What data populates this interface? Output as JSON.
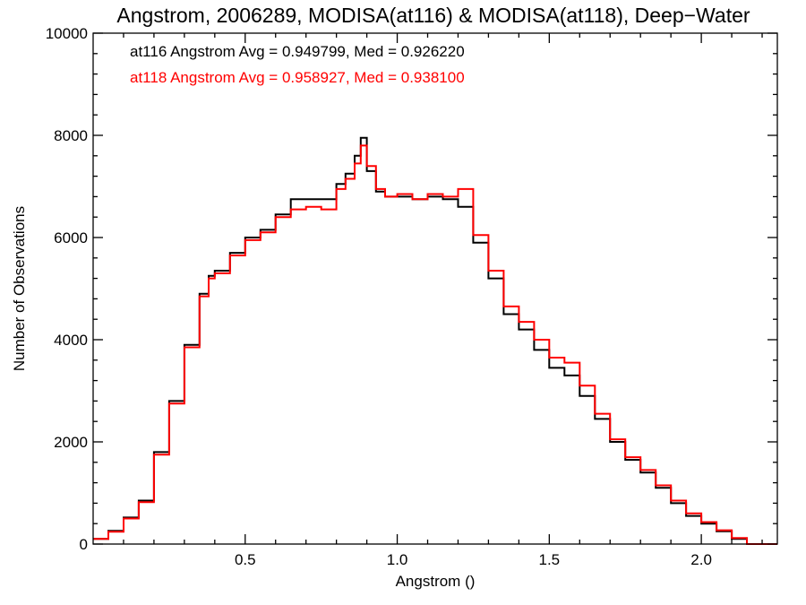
{
  "chart_data": {
    "type": "line",
    "style": "histogram-step",
    "title": "Angstrom, 2006289, MODISA(at116) & MODISA(at118), Deep−Water",
    "xlabel": "Angstrom ()",
    "ylabel": "Number of Observations",
    "xlim": [
      0.0,
      2.25
    ],
    "ylim": [
      0,
      10000
    ],
    "xticks": [
      0.5,
      1.0,
      1.5,
      2.0
    ],
    "xtick_labels": [
      "0.5",
      "1.0",
      "1.5",
      "2.0"
    ],
    "yticks": [
      0,
      2000,
      4000,
      6000,
      8000,
      10000
    ],
    "ytick_labels": [
      "0",
      "2000",
      "4000",
      "6000",
      "8000",
      "10000"
    ],
    "grid": false,
    "legend_position": "top-left",
    "series": [
      {
        "name": "at116",
        "legend": "at116 Angstrom Avg = 0.949799, Med = 0.926220",
        "color": "#000000",
        "x": [
          0.0,
          0.05,
          0.1,
          0.15,
          0.2,
          0.25,
          0.3,
          0.35,
          0.38,
          0.4,
          0.45,
          0.5,
          0.55,
          0.6,
          0.65,
          0.7,
          0.75,
          0.8,
          0.83,
          0.86,
          0.88,
          0.9,
          0.93,
          0.96,
          1.0,
          1.05,
          1.1,
          1.15,
          1.2,
          1.25,
          1.3,
          1.35,
          1.4,
          1.45,
          1.5,
          1.55,
          1.6,
          1.65,
          1.7,
          1.75,
          1.8,
          1.85,
          1.9,
          1.95,
          2.0,
          2.05,
          2.1,
          2.15,
          2.25
        ],
        "values": [
          100,
          260,
          520,
          850,
          1800,
          2800,
          3900,
          4900,
          5250,
          5350,
          5700,
          6000,
          6150,
          6450,
          6750,
          6750,
          6750,
          7050,
          7250,
          7600,
          7950,
          7300,
          6900,
          6800,
          6800,
          6750,
          6800,
          6750,
          6600,
          5900,
          5200,
          4500,
          4200,
          3800,
          3450,
          3300,
          2900,
          2450,
          2000,
          1650,
          1400,
          1100,
          800,
          550,
          400,
          250,
          100,
          0,
          0
        ]
      },
      {
        "name": "at118",
        "legend": "at118 Angstrom Avg = 0.958927, Med = 0.938100",
        "color": "#ff0000",
        "x": [
          0.0,
          0.05,
          0.1,
          0.15,
          0.2,
          0.25,
          0.3,
          0.35,
          0.38,
          0.4,
          0.45,
          0.5,
          0.55,
          0.6,
          0.65,
          0.7,
          0.75,
          0.8,
          0.83,
          0.86,
          0.88,
          0.9,
          0.93,
          0.96,
          1.0,
          1.05,
          1.1,
          1.15,
          1.2,
          1.25,
          1.3,
          1.35,
          1.4,
          1.45,
          1.5,
          1.55,
          1.6,
          1.65,
          1.7,
          1.75,
          1.8,
          1.85,
          1.9,
          1.95,
          2.0,
          2.05,
          2.1,
          2.15,
          2.25
        ],
        "values": [
          100,
          240,
          500,
          820,
          1750,
          2750,
          3850,
          4850,
          5200,
          5300,
          5650,
          5950,
          6100,
          6400,
          6550,
          6600,
          6550,
          6950,
          7150,
          7450,
          7800,
          7400,
          6950,
          6800,
          6850,
          6750,
          6850,
          6800,
          6950,
          6050,
          5350,
          4650,
          4350,
          4000,
          3650,
          3550,
          3100,
          2550,
          2050,
          1700,
          1450,
          1150,
          850,
          600,
          430,
          270,
          120,
          0,
          0
        ]
      }
    ]
  }
}
